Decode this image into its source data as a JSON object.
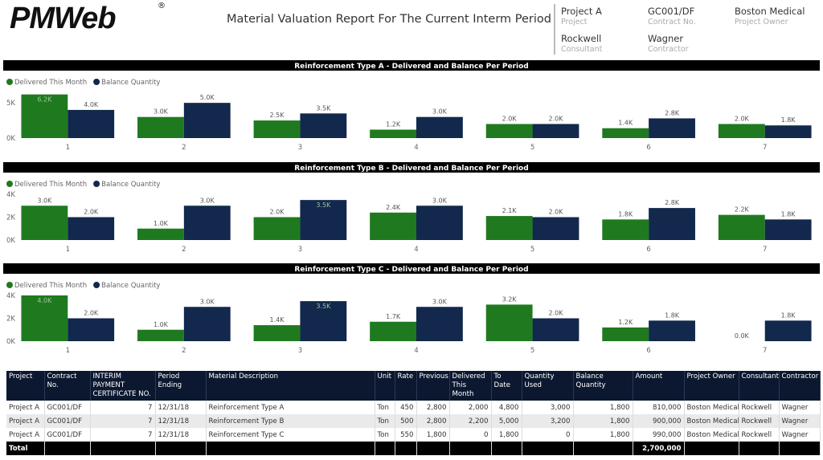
{
  "header": {
    "logo": "PMWeb",
    "logo_mark": "®",
    "title": "Material Valuation Report For The Current Interm Period",
    "info": [
      {
        "value": "Project A",
        "label": "Project"
      },
      {
        "value": "GC001/DF",
        "label": "Contract No."
      },
      {
        "value": "Boston Medical",
        "label": "Project Owner"
      },
      {
        "value": "Rockwell",
        "label": "Consultant"
      },
      {
        "value": "Wagner",
        "label": "Contractor"
      }
    ]
  },
  "chart_data": [
    {
      "type": "bar",
      "title": "Reinforcement Type A - Delivered and Balance Per Period",
      "legend": "top-left",
      "categories": [
        "1",
        "2",
        "3",
        "4",
        "5",
        "6",
        "7"
      ],
      "series": [
        {
          "name": "Delivered This Month",
          "color": "#1f7a1f",
          "values": [
            6200,
            3000,
            2500,
            1200,
            2000,
            1400,
            2000
          ],
          "value_labels": [
            "6.2K",
            "3.0K",
            "2.5K",
            "1.2K",
            "2.0K",
            "1.4K",
            "2.0K"
          ]
        },
        {
          "name": "Balance Quantity",
          "color": "#12284c",
          "values": [
            4000,
            5000,
            3500,
            3000,
            2000,
            2800,
            1800
          ],
          "value_labels": [
            "4.0K",
            "5.0K",
            "3.5K",
            "3.0K",
            "2.0K",
            "2.8K",
            "1.8K"
          ]
        }
      ],
      "ylim": [
        0,
        6500
      ],
      "yticks": [
        {
          "value": 0,
          "label": "0K"
        },
        {
          "value": 5000,
          "label": "5K"
        }
      ]
    },
    {
      "type": "bar",
      "title": "Reinforcement Type B - Delivered and Balance Per Period",
      "legend": "top-left",
      "categories": [
        "1",
        "2",
        "3",
        "4",
        "5",
        "6",
        "7"
      ],
      "series": [
        {
          "name": "Delivered This Month",
          "color": "#1f7a1f",
          "values": [
            3000,
            1000,
            2000,
            2400,
            2100,
            1800,
            2200
          ],
          "value_labels": [
            "3.0K",
            "1.0K",
            "2.0K",
            "2.4K",
            "2.1K",
            "1.8K",
            "2.2K"
          ]
        },
        {
          "name": "Balance Quantity",
          "color": "#12284c",
          "values": [
            2000,
            3000,
            3500,
            3000,
            2000,
            2800,
            1800
          ],
          "value_labels": [
            "2.0K",
            "3.0K",
            "3.5K",
            "3.0K",
            "2.0K",
            "2.8K",
            "1.8K"
          ]
        }
      ],
      "ylim": [
        0,
        4000
      ],
      "yticks": [
        {
          "value": 0,
          "label": "0K"
        },
        {
          "value": 2000,
          "label": "2K"
        },
        {
          "value": 4000,
          "label": "4K"
        }
      ]
    },
    {
      "type": "bar",
      "title": "Reinforcement Type C - Delivered and Balance Per Period",
      "legend": "top-left",
      "categories": [
        "1",
        "2",
        "3",
        "4",
        "5",
        "6",
        "7"
      ],
      "series": [
        {
          "name": "Delivered This Month",
          "color": "#1f7a1f",
          "values": [
            4000,
            1000,
            1400,
            1700,
            3200,
            1200,
            0
          ],
          "value_labels": [
            "4.0K",
            "1.0K",
            "1.4K",
            "1.7K",
            "3.2K",
            "1.2K",
            "0.0K"
          ]
        },
        {
          "name": "Balance Quantity",
          "color": "#12284c",
          "values": [
            2000,
            3000,
            3500,
            3000,
            2000,
            1800,
            1800
          ],
          "value_labels": [
            "2.0K",
            "3.0K",
            "3.5K",
            "3.0K",
            "2.0K",
            "1.8K",
            "1.8K"
          ]
        }
      ],
      "ylim": [
        0,
        4000
      ],
      "yticks": [
        {
          "value": 0,
          "label": "0K"
        },
        {
          "value": 2000,
          "label": "2K"
        },
        {
          "value": 4000,
          "label": "4K"
        }
      ]
    }
  ],
  "table": {
    "columns": [
      "Project",
      "Contract No.",
      "INTERIM PAYMENT CERTIFICATE NO.",
      "Period Ending",
      "Material Description",
      "Unit",
      "Rate",
      "Previous",
      "Delivered This Month",
      "To Date",
      "Quantity Used",
      "Balance Quantity",
      "Amount",
      "Project Owner",
      "Consultant",
      "Contractor"
    ],
    "rows": [
      [
        "Project A",
        "GC001/DF",
        "7",
        "12/31/18",
        "Reinforcement Type A",
        "Ton",
        "450",
        "2,800",
        "2,000",
        "4,800",
        "3,000",
        "1,800",
        "810,000",
        "Boston Medical",
        "Rockwell",
        "Wagner"
      ],
      [
        "Project A",
        "GC001/DF",
        "7",
        "12/31/18",
        "Reinforcement Type B",
        "Ton",
        "500",
        "2,800",
        "2,200",
        "5,000",
        "3,200",
        "1,800",
        "900,000",
        "Boston Medical",
        "Rockwell",
        "Wagner"
      ],
      [
        "Project A",
        "GC001/DF",
        "7",
        "12/31/18",
        "Reinforcement Type C",
        "Ton",
        "550",
        "1,800",
        "0",
        "1,800",
        "0",
        "1,800",
        "990,000",
        "Boston Medical",
        "Rockwell",
        "Wagner"
      ]
    ],
    "total": {
      "label": "Total",
      "amount": "2,700,000"
    }
  }
}
